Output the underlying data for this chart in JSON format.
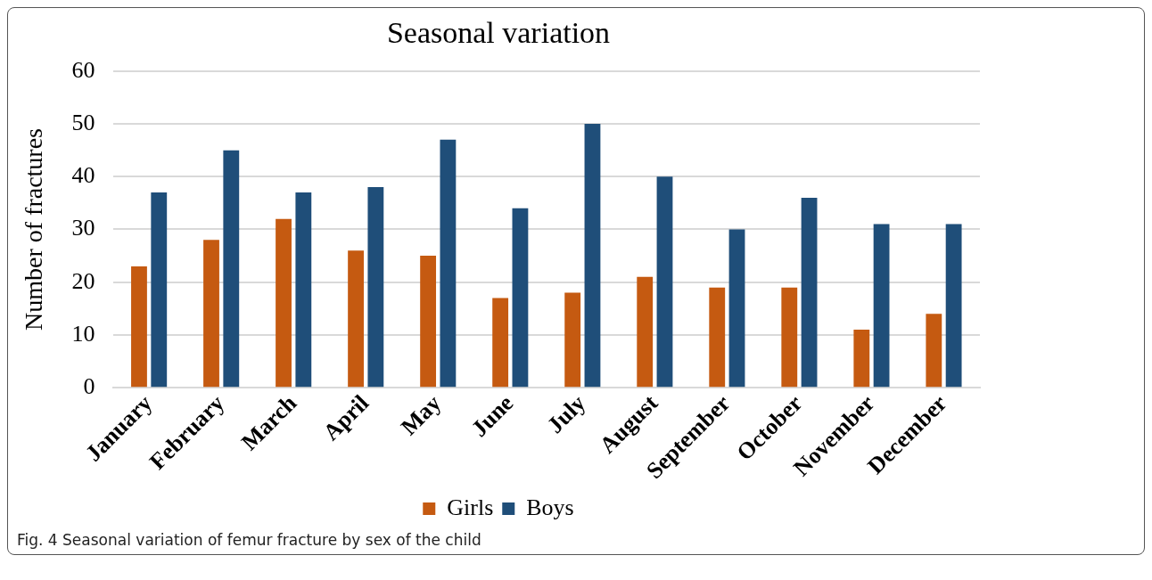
{
  "chart_data": {
    "type": "bar",
    "title": "Seasonal variation",
    "ylabel": "Number of fractures",
    "categories": [
      "January",
      "February",
      "March",
      "April",
      "May",
      "June",
      "July",
      "August",
      "September",
      "October",
      "November",
      "December"
    ],
    "series": [
      {
        "name": "Girls",
        "color": "#c55a11",
        "values": [
          23,
          28,
          32,
          26,
          25,
          17,
          18,
          21,
          19,
          19,
          11,
          14
        ]
      },
      {
        "name": "Boys",
        "color": "#1f4e79",
        "values": [
          37,
          45,
          37,
          38,
          47,
          34,
          50,
          40,
          30,
          36,
          31,
          31
        ]
      }
    ],
    "ylim": [
      0,
      60
    ],
    "yticks": [
      0,
      10,
      20,
      30,
      40,
      50,
      60
    ],
    "grid": "y",
    "legend": "bottom",
    "annotations": [
      "Fig. 4 Seasonal variation of femur fracture by sex of the child"
    ]
  }
}
